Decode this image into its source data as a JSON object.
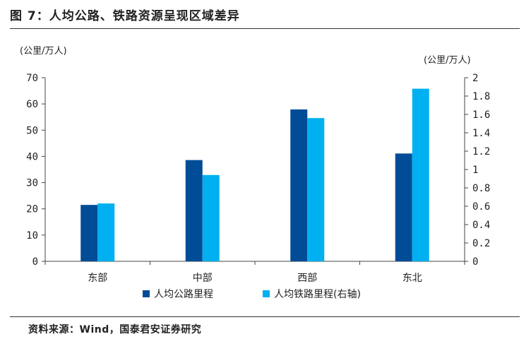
{
  "header": {
    "title": "图 7：人均公路、铁路资源呈现区域差异"
  },
  "footer": {
    "source": "资料来源：Wind，国泰君安证券研究"
  },
  "chart_data": {
    "type": "bar",
    "categories": [
      "东部",
      "中部",
      "西部",
      "东北"
    ],
    "series": [
      {
        "name": "人均公路里程",
        "axis": "left",
        "color": "#004c97",
        "values": [
          21.5,
          38.6,
          57.9,
          41.1
        ]
      },
      {
        "name": "人均铁路里程(右轴)",
        "axis": "right",
        "color": "#00b0f0",
        "values": [
          0.63,
          0.94,
          1.56,
          1.88
        ]
      }
    ],
    "y_left": {
      "unit": "(公里/万人)",
      "ylim": [
        0,
        70
      ],
      "ticks": [
        "0",
        "10",
        "20",
        "30",
        "40",
        "50",
        "60",
        "70"
      ]
    },
    "y_right": {
      "unit": "(公里/万人)",
      "ylim": [
        0,
        2
      ],
      "ticks": [
        "0",
        "0.2",
        "0.4",
        "0.6",
        "0.8",
        "1",
        "1.2",
        "1.4",
        "1.6",
        "1.8",
        "2"
      ]
    },
    "grid": false,
    "legend_position": "bottom-center"
  }
}
